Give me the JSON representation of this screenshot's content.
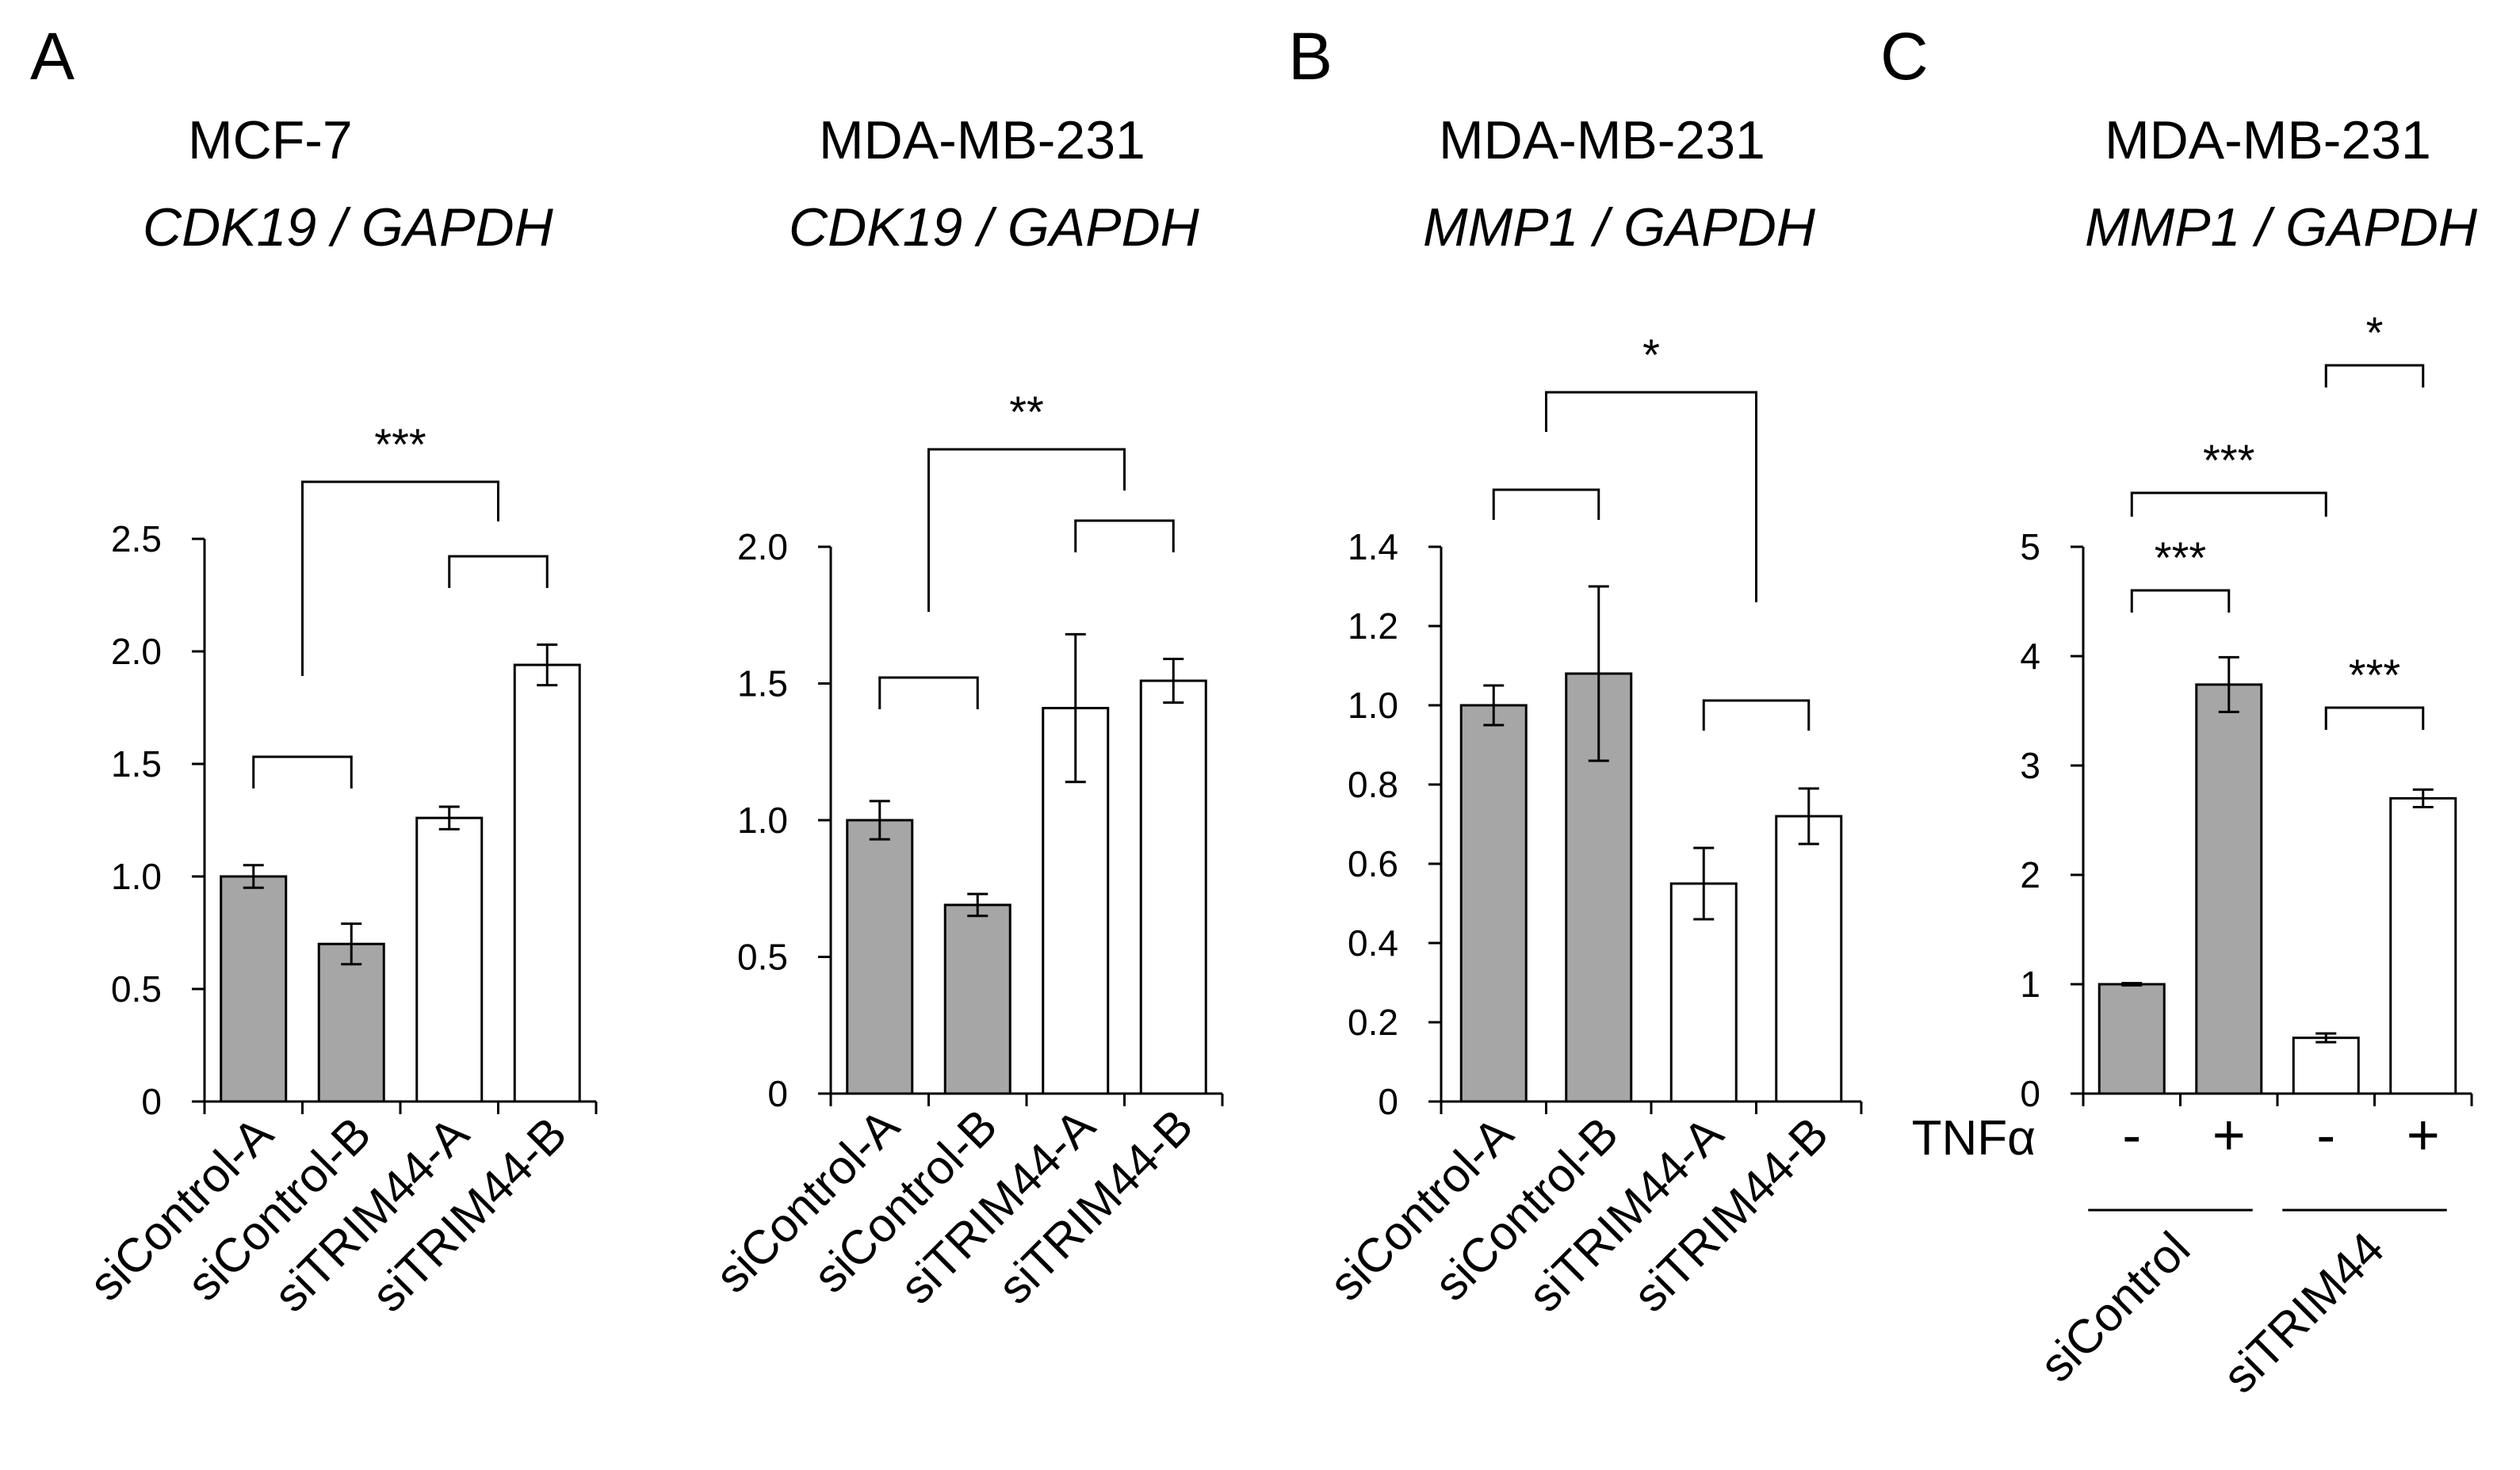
{
  "panel_letters": [
    "A",
    "B",
    "C"
  ],
  "chart_data": [
    {
      "type": "bar",
      "panel": "A",
      "title": "MCF-7",
      "subtitle": "CDK19 / GAPDH",
      "categories": [
        "siControl-A",
        "siControl-B",
        "siTRIM44-A",
        "siTRIM44-B"
      ],
      "values": [
        1.0,
        0.7,
        1.26,
        1.94
      ],
      "errors": [
        0.05,
        0.09,
        0.05,
        0.09
      ],
      "bar_colors": [
        "#a6a6a6",
        "#a6a6a6",
        "#ffffff",
        "#ffffff"
      ],
      "ylim": [
        0,
        2.5
      ],
      "yticks": [
        0,
        0.5,
        1.0,
        1.5,
        2.0,
        2.5
      ],
      "ytick_labels": [
        "0",
        "0.5",
        "1.0",
        "1.5",
        "2.0",
        "2.5"
      ],
      "brackets": [
        {
          "from": 0,
          "to": 1,
          "label": ""
        },
        {
          "from": 2,
          "to": 3,
          "label": ""
        },
        {
          "from": "0-1",
          "to": "2-3",
          "label": "***"
        }
      ]
    },
    {
      "type": "bar",
      "panel": "A",
      "title": "MDA-MB-231",
      "subtitle": "CDK19 / GAPDH",
      "categories": [
        "siControl-A",
        "siControl-B",
        "siTRIM44-A",
        "siTRIM44-B"
      ],
      "values": [
        1.0,
        0.69,
        1.41,
        1.51
      ],
      "errors": [
        0.07,
        0.04,
        0.27,
        0.08
      ],
      "bar_colors": [
        "#a6a6a6",
        "#a6a6a6",
        "#ffffff",
        "#ffffff"
      ],
      "ylim": [
        0,
        2.0
      ],
      "yticks": [
        0,
        0.5,
        1.0,
        1.5,
        2.0
      ],
      "ytick_labels": [
        "0",
        "0.5",
        "1.0",
        "1.5",
        "2.0"
      ],
      "brackets": [
        {
          "from": 0,
          "to": 1,
          "label": ""
        },
        {
          "from": 2,
          "to": 3,
          "label": ""
        },
        {
          "from": "0-1",
          "to": "2-3",
          "label": "**"
        }
      ]
    },
    {
      "type": "bar",
      "panel": "B",
      "title": "MDA-MB-231",
      "subtitle": "MMP1 / GAPDH",
      "categories": [
        "siControl-A",
        "siControl-B",
        "siTRIM44-A",
        "siTRIM44-B"
      ],
      "values": [
        1.0,
        1.08,
        0.55,
        0.72
      ],
      "errors": [
        0.05,
        0.22,
        0.09,
        0.07
      ],
      "bar_colors": [
        "#a6a6a6",
        "#a6a6a6",
        "#ffffff",
        "#ffffff"
      ],
      "ylim": [
        0,
        1.4
      ],
      "yticks": [
        0,
        0.2,
        0.4,
        0.6,
        0.8,
        1.0,
        1.2,
        1.4
      ],
      "ytick_labels": [
        "0",
        "0.2",
        "0.4",
        "0.6",
        "0.8",
        "1.0",
        "1.2",
        "1.4"
      ],
      "brackets": [
        {
          "from": 0,
          "to": 1,
          "label": ""
        },
        {
          "from": 2,
          "to": 3,
          "label": ""
        },
        {
          "from": "0-1",
          "to": "2-3",
          "label": "*"
        }
      ]
    },
    {
      "type": "bar",
      "panel": "C",
      "title": "MDA-MB-231",
      "subtitle": "MMP1 / GAPDH",
      "treatment_label": "TNFα",
      "treatment_signs": [
        "-",
        "+",
        "-",
        "+"
      ],
      "group_labels": [
        "siControl",
        "siTRIM44"
      ],
      "values": [
        1.0,
        3.74,
        0.51,
        2.7
      ],
      "errors": [
        0.01,
        0.25,
        0.04,
        0.08
      ],
      "bar_colors": [
        "#a6a6a6",
        "#a6a6a6",
        "#ffffff",
        "#ffffff"
      ],
      "ylim": [
        0,
        5
      ],
      "yticks": [
        0,
        1,
        2,
        3,
        4,
        5
      ],
      "ytick_labels": [
        "0",
        "1",
        "2",
        "3",
        "4",
        "5"
      ],
      "brackets": [
        {
          "from": 0,
          "to": 1,
          "label": "***"
        },
        {
          "from": 2,
          "to": 3,
          "label": "***"
        },
        {
          "from": 0,
          "to": 2,
          "label": "***"
        },
        {
          "from": 2,
          "to": 3,
          "label": "*",
          "stacked": true
        }
      ]
    }
  ]
}
